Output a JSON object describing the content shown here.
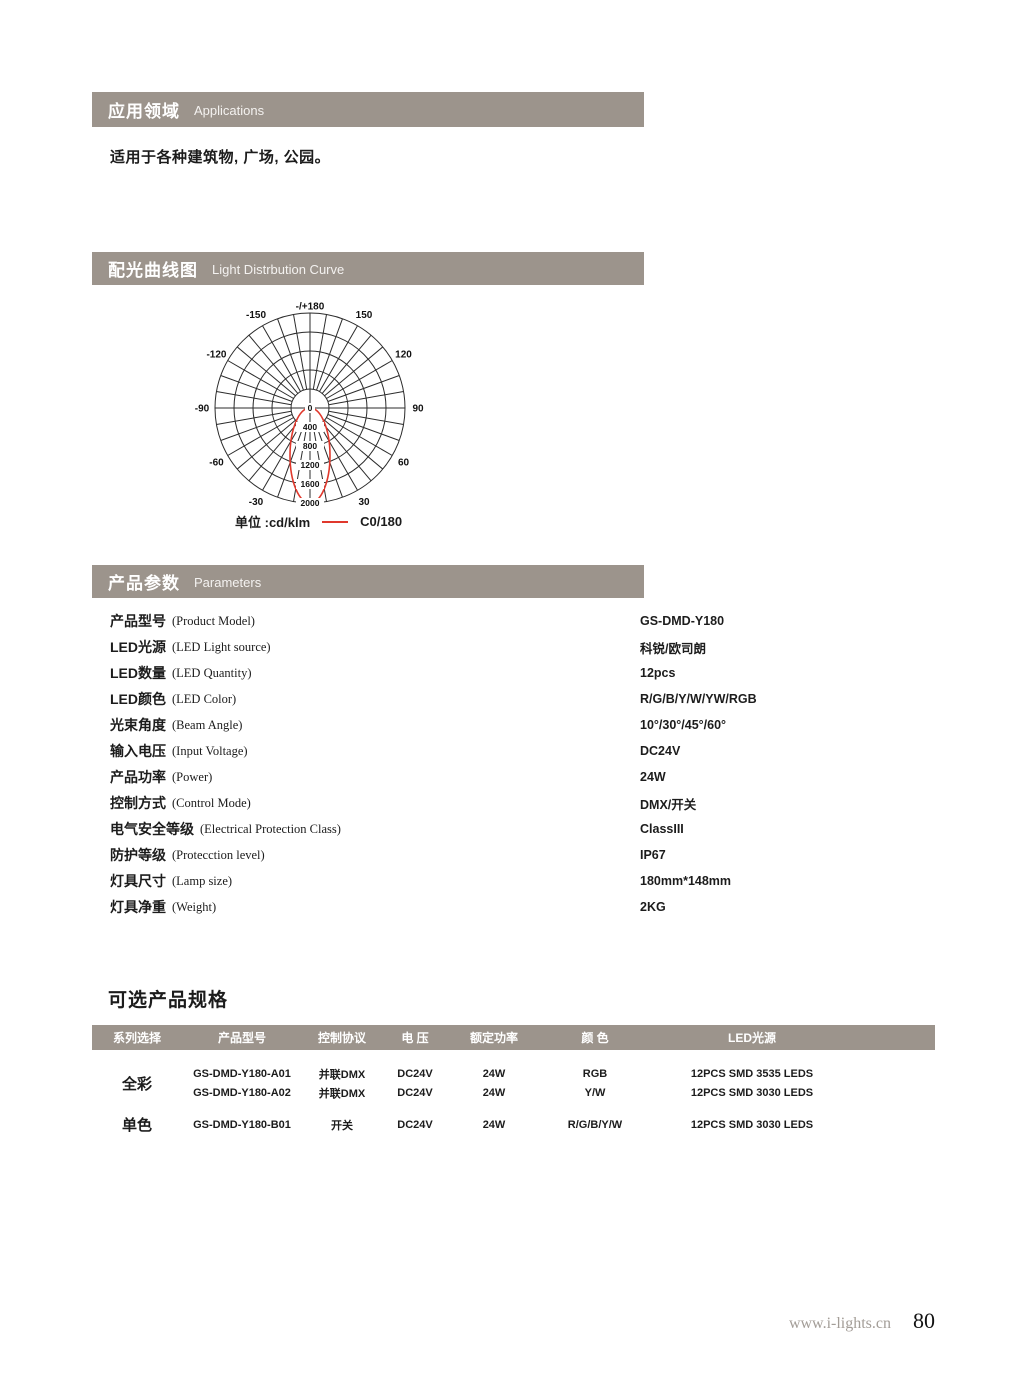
{
  "colors": {
    "section_bar": "#9c948c",
    "curve_red": "#e0382c",
    "grid_line": "#2b2b2b",
    "footer_gray": "#a39d97"
  },
  "sections": {
    "applications": {
      "title_cn": "应用领域",
      "title_en": "Applications",
      "body": "适用于各种建筑物, 广场, 公园。"
    },
    "light_curve": {
      "title_cn": "配光曲线图",
      "title_en": "Light Distrbution Curve"
    },
    "parameters": {
      "title_cn": "产品参数",
      "title_en": "Parameters",
      "rows": [
        {
          "label_cn": "产品型号",
          "label_en": "(Product Model)",
          "value": "GS-DMD-Y180"
        },
        {
          "label_cn": "LED光源",
          "label_en": "(LED Light source)",
          "value": "科锐/欧司朗"
        },
        {
          "label_cn": "LED数量",
          "label_en": "(LED Quantity)",
          "value": "12pcs"
        },
        {
          "label_cn": "LED颜色",
          "label_en": "(LED Color)",
          "value": "R/G/B/Y/W/YW/RGB"
        },
        {
          "label_cn": "光束角度",
          "label_en": "(Beam Angle)",
          "value": "10°/30°/45°/60°"
        },
        {
          "label_cn": "输入电压",
          "label_en": "(Input Voltage)",
          "value": "DC24V"
        },
        {
          "label_cn": "产品功率",
          "label_en": "(Power)",
          "value": "24W"
        },
        {
          "label_cn": "控制方式",
          "label_en": "(Control Mode)",
          "value": "DMX/开关"
        },
        {
          "label_cn": "电气安全等级",
          "label_en": "(Electrical Protection Class)",
          "value": "ClassIII"
        },
        {
          "label_cn": "防护等级",
          "label_en": "(Protecction level)",
          "value": "IP67"
        },
        {
          "label_cn": "灯具尺寸",
          "label_en": "(Lamp size)",
          "value": "180mm*148mm"
        },
        {
          "label_cn": "灯具净重",
          "label_en": "(Weight)",
          "value": "2KG"
        }
      ]
    },
    "options": {
      "heading": "可选产品规格",
      "columns": [
        "系列选择",
        "产品型号",
        "控制协议",
        "电 压",
        "额定功率",
        "颜 色",
        "LED光源"
      ],
      "groups": [
        {
          "series": "全彩",
          "rows": [
            [
              "GS-DMD-Y180-A01",
              "并联DMX",
              "DC24V",
              "24W",
              "RGB",
              "12PCS SMD 3535 LEDS"
            ],
            [
              "GS-DMD-Y180-A02",
              "并联DMX",
              "DC24V",
              "24W",
              "Y/W",
              "12PCS SMD 3030 LEDS"
            ]
          ]
        },
        {
          "series": "单色",
          "rows": [
            [
              "GS-DMD-Y180-B01",
              "开关",
              "DC24V",
              "24W",
              "R/G/B/Y/W",
              "12PCS SMD 3030 LEDS"
            ]
          ]
        }
      ]
    }
  },
  "chart_data": {
    "type": "polar",
    "title": "配光曲线图 Light Distrbution Curve",
    "radial_unit_label": "单位 :cd/klm",
    "radial_ticks": [
      400,
      800,
      1200,
      1600,
      2000
    ],
    "radial_max": 2000,
    "center_label": "0",
    "angle_step_deg": 10,
    "angle_labels": [
      {
        "deg": 180,
        "label": "-/+180"
      },
      {
        "deg": 150,
        "label": "150"
      },
      {
        "deg": 120,
        "label": "120"
      },
      {
        "deg": 90,
        "label": "90"
      },
      {
        "deg": 60,
        "label": "60"
      },
      {
        "deg": 30,
        "label": "30"
      },
      {
        "deg": -30,
        "label": "-30"
      },
      {
        "deg": -60,
        "label": "-60"
      },
      {
        "deg": -90,
        "label": "-90"
      },
      {
        "deg": -120,
        "label": "-120"
      },
      {
        "deg": -150,
        "label": "-150"
      }
    ],
    "series": [
      {
        "name": "C0/180",
        "color": "#e0382c",
        "peak_value": 2000,
        "peak_angle_deg": 0,
        "shape": "narrow downward lobe, approx ±20°"
      }
    ]
  },
  "footer": {
    "url": "www.i-lights.cn",
    "page_number": "80"
  }
}
